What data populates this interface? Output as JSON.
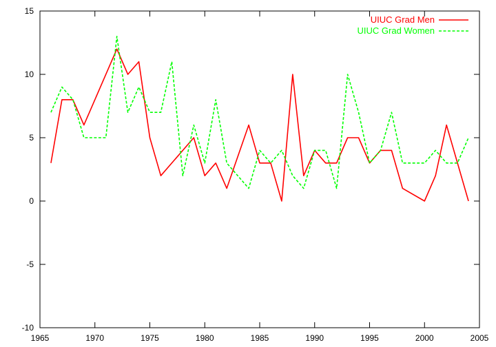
{
  "chart_data": {
    "type": "line",
    "title": "",
    "xlabel": "",
    "ylabel": "",
    "xlim": [
      1965,
      2005
    ],
    "ylim": [
      -10,
      15
    ],
    "xticks": [
      1965,
      1970,
      1975,
      1980,
      1985,
      1990,
      1995,
      2000,
      2005
    ],
    "yticks": [
      -10,
      -5,
      0,
      5,
      10,
      15
    ],
    "grid": false,
    "legend_position": "top-right",
    "series": [
      {
        "name": "UIUC Grad Men",
        "color": "#ff0000",
        "style": "solid",
        "x": [
          1966,
          1967,
          1968,
          1969,
          1972,
          1973,
          1974,
          1975,
          1976,
          1979,
          1980,
          1981,
          1982,
          1984,
          1985,
          1986,
          1987,
          1988,
          1989,
          1990,
          1991,
          1992,
          1993,
          1994,
          1995,
          1996,
          1997,
          1998,
          2000,
          2001,
          2002,
          2004
        ],
        "y": [
          3,
          8,
          8,
          6,
          12,
          10,
          11,
          5,
          2,
          5,
          2,
          3,
          1,
          6,
          3,
          3,
          0,
          10,
          2,
          4,
          3,
          3,
          5,
          5,
          3,
          4,
          4,
          1,
          0,
          2,
          6,
          0
        ]
      },
      {
        "name": "UIUC Grad Women",
        "color": "#00ff00",
        "style": "dashed",
        "x": [
          1966,
          1967,
          1968,
          1969,
          1970,
          1971,
          1972,
          1973,
          1974,
          1975,
          1976,
          1977,
          1978,
          1979,
          1980,
          1981,
          1982,
          1984,
          1985,
          1986,
          1987,
          1988,
          1989,
          1990,
          1991,
          1992,
          1993,
          1994,
          1995,
          1996,
          1997,
          1998,
          2000,
          2001,
          2002,
          2003,
          2004
        ],
        "y": [
          7,
          9,
          8,
          5,
          5,
          5,
          13,
          7,
          9,
          7,
          7,
          11,
          2,
          6,
          3,
          8,
          3,
          1,
          4,
          3,
          4,
          2,
          1,
          4,
          4,
          1,
          10,
          7,
          3,
          4,
          7,
          3,
          3,
          4,
          3,
          3,
          5
        ]
      }
    ]
  }
}
